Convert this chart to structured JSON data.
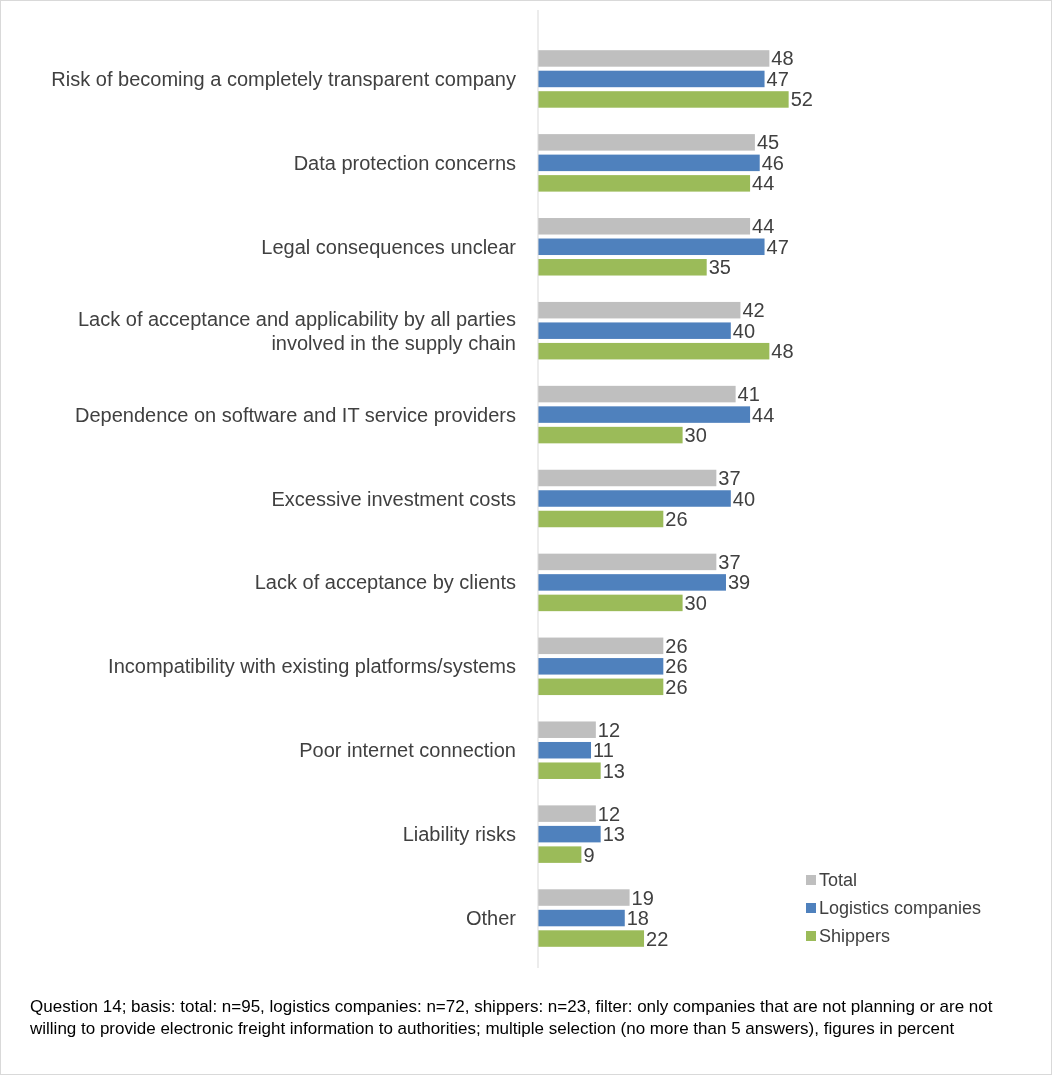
{
  "chart_data": {
    "type": "bar",
    "orientation": "horizontal",
    "data_labels": true,
    "legend": "bottom right",
    "categories": [
      "Risk of becoming a completely transparent company",
      "Data protection concerns",
      "Legal consequences unclear",
      "Lack of acceptance and applicability by all parties involved in the supply chain",
      "Dependence on software and IT service providers",
      "Excessive investment costs",
      "Lack of acceptance by clients",
      "Incompatibility with existing platforms/systems",
      "Poor internet connection",
      "Liability risks",
      "Other"
    ],
    "series": [
      {
        "name": "Total",
        "color": "#bfbfbf",
        "values": [
          48,
          45,
          44,
          42,
          41,
          37,
          37,
          26,
          12,
          12,
          19
        ]
      },
      {
        "name": "Logistics companies",
        "color": "#4f81bd",
        "values": [
          47,
          46,
          47,
          40,
          44,
          40,
          39,
          26,
          11,
          13,
          18
        ]
      },
      {
        "name": "Shippers",
        "color": "#9bbb59",
        "values": [
          52,
          44,
          35,
          48,
          30,
          26,
          30,
          26,
          13,
          9,
          22
        ]
      }
    ],
    "annotations": [
      "Question 14; basis: total: n=95, logistics companies: n=72, shippers: n=23, filter: only companies that are not planning or are not willing to provide electronic freight information to authorities; multiple selection (no more than 5 answers), figures in percent"
    ]
  }
}
